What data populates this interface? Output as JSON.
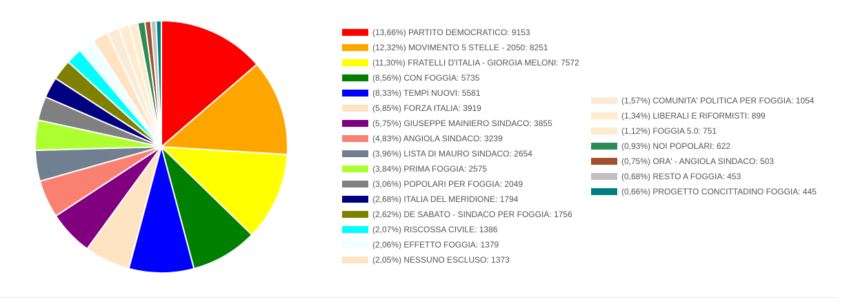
{
  "chart_data": {
    "type": "pie",
    "title": "",
    "slices": [
      {
        "label": "PARTITO DEMOCRATICO",
        "value": 9153,
        "percent": "13,66%",
        "color": "#ff0000"
      },
      {
        "label": "MOVIMENTO 5 STELLE - 2050",
        "value": 8251,
        "percent": "12,32%",
        "color": "#ffa500"
      },
      {
        "label": "FRATELLI D'ITALIA - GIORGIA MELONI",
        "value": 7572,
        "percent": "11,30%",
        "color": "#ffff00"
      },
      {
        "label": "CON FOGGIA",
        "value": 5735,
        "percent": "8,56%",
        "color": "#008000"
      },
      {
        "label": "TEMPI NUOVI",
        "value": 5581,
        "percent": "8,33%",
        "color": "#0000ff"
      },
      {
        "label": "FORZA ITALIA",
        "value": 3919,
        "percent": "5,85%",
        "color": "#ffe4c4"
      },
      {
        "label": "GIUSEPPE MAINIERO SINDACO",
        "value": 3855,
        "percent": "5,75%",
        "color": "#800080"
      },
      {
        "label": "ANGIOLA SINDACO",
        "value": 3239,
        "percent": "4,83%",
        "color": "#fa8072"
      },
      {
        "label": "LISTA DI MAURO SINDACO",
        "value": 2654,
        "percent": "3,96%",
        "color": "#708090"
      },
      {
        "label": "PRIMA FOGGIA",
        "value": 2575,
        "percent": "3,84%",
        "color": "#adff2f"
      },
      {
        "label": "POPOLARI PER FOGGIA",
        "value": 2049,
        "percent": "3,06%",
        "color": "#808080"
      },
      {
        "label": "ITALIA DEL MERIDIONE",
        "value": 1794,
        "percent": "2,68%",
        "color": "#000080"
      },
      {
        "label": "DE SABATO - SINDACO PER FOGGIA",
        "value": 1756,
        "percent": "2,62%",
        "color": "#808000"
      },
      {
        "label": "RISCOSSA CIVILE",
        "value": 1386,
        "percent": "2,07%",
        "color": "#00ffff"
      },
      {
        "label": "EFFETTO FOGGIA",
        "value": 1379,
        "percent": "2,06%",
        "color": "#f0ffff"
      },
      {
        "label": "NESSUNO ESCLUSO",
        "value": 1373,
        "percent": "2,05%",
        "color": "#ffe4c4"
      },
      {
        "label": "COMUNITA' POLITICA PER FOGGIA",
        "value": 1054,
        "percent": "1,57%",
        "color": "#faebd7"
      },
      {
        "label": "LIBERALI E RIFORMISTI",
        "value": 899,
        "percent": "1,34%",
        "color": "#ffebcd"
      },
      {
        "label": "FOGGIA 5.0",
        "value": 751,
        "percent": "1,12%",
        "color": "#ffebcd"
      },
      {
        "label": "NOI POPOLARI",
        "value": 622,
        "percent": "0,93%",
        "color": "#2e8b57"
      },
      {
        "label": "ORA' - ANGIOLA SINDACO",
        "value": 503,
        "percent": "0,75%",
        "color": "#a0522d"
      },
      {
        "label": "RESTO A FOGGIA",
        "value": 453,
        "percent": "0,68%",
        "color": "#c0c0c0"
      },
      {
        "label": "PROGETTO CONCITTADINO FOGGIA",
        "value": 445,
        "percent": "0,66%",
        "color": "#008080"
      }
    ],
    "legend_placement": "right, two columns"
  }
}
